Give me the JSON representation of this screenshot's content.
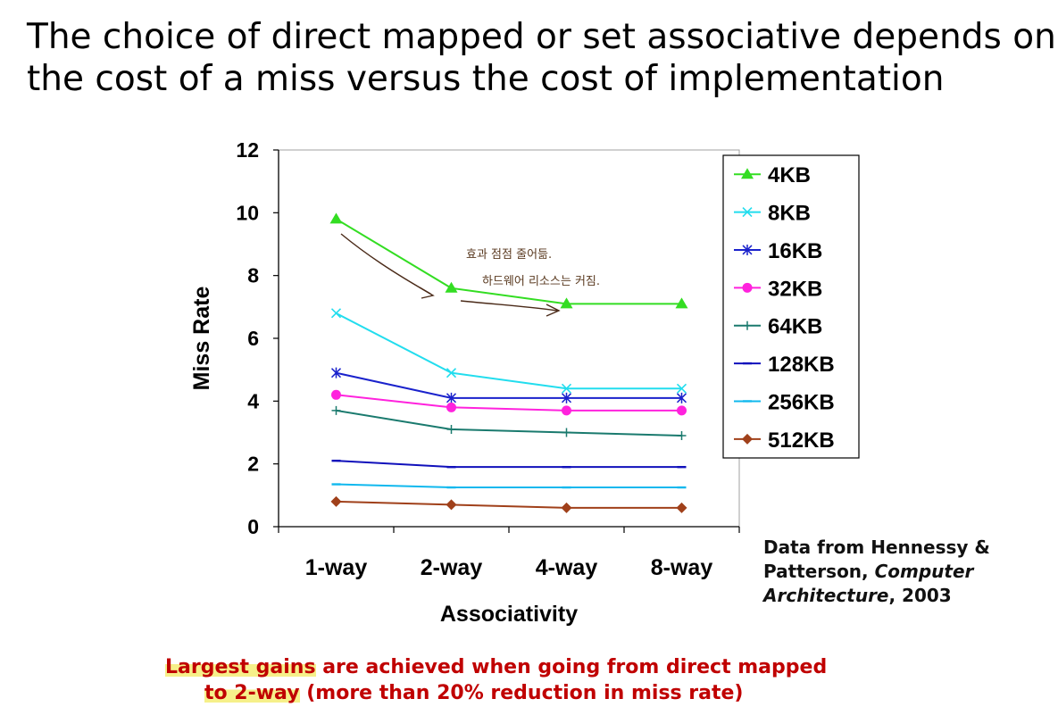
{
  "slide": {
    "title_line1": "The choice of direct mapped or set associative depends on",
    "title_line2": "the cost of a miss versus the cost of implementation",
    "credit": {
      "line1": "Data from Hennessy &",
      "line2_prefix": "Patterson, ",
      "line2_italic": "Computer",
      "line3_italic": "Architecture",
      "line3_suffix": ", 2003"
    },
    "note": {
      "line1_hl": "Largest gains",
      "line1_rest": " are achieved when going from direct mapped",
      "line2_hl": "to 2-way",
      "line2_rest": " (more than 20% reduction in miss rate)"
    },
    "handwriting": {
      "line1": "효과 점점 줄어듦.",
      "line2": "하드웨어 리소스는 커짐."
    }
  },
  "chart_data": {
    "type": "line",
    "categories": [
      "1-way",
      "2-way",
      "4-way",
      "8-way"
    ],
    "xlabel": "Associativity",
    "ylabel": "Miss Rate",
    "ylim": [
      0,
      12
    ],
    "yticks": [
      0,
      2,
      4,
      6,
      8,
      10,
      12
    ],
    "grid": false,
    "legend_position": "top-right",
    "series": [
      {
        "name": "4KB",
        "values": [
          9.8,
          7.6,
          7.1,
          7.1
        ],
        "color": "#33dd22",
        "marker": "triangle"
      },
      {
        "name": "8KB",
        "values": [
          6.8,
          4.9,
          4.4,
          4.4
        ],
        "color": "#22ddee",
        "marker": "x"
      },
      {
        "name": "16KB",
        "values": [
          4.9,
          4.1,
          4.1,
          4.1
        ],
        "color": "#1a22cc",
        "marker": "star"
      },
      {
        "name": "32KB",
        "values": [
          4.2,
          3.8,
          3.7,
          3.7
        ],
        "color": "#ff22dd",
        "marker": "circle"
      },
      {
        "name": "64KB",
        "values": [
          3.7,
          3.1,
          3.0,
          2.9
        ],
        "color": "#1a7a6e",
        "marker": "plus"
      },
      {
        "name": "128KB",
        "values": [
          2.1,
          1.9,
          1.9,
          1.9
        ],
        "color": "#1010bb",
        "marker": "dash"
      },
      {
        "name": "256KB",
        "values": [
          1.35,
          1.25,
          1.25,
          1.25
        ],
        "color": "#10b8ee",
        "marker": "dash"
      },
      {
        "name": "512KB",
        "values": [
          0.8,
          0.7,
          0.6,
          0.6
        ],
        "color": "#a0401a",
        "marker": "diamond"
      }
    ]
  }
}
